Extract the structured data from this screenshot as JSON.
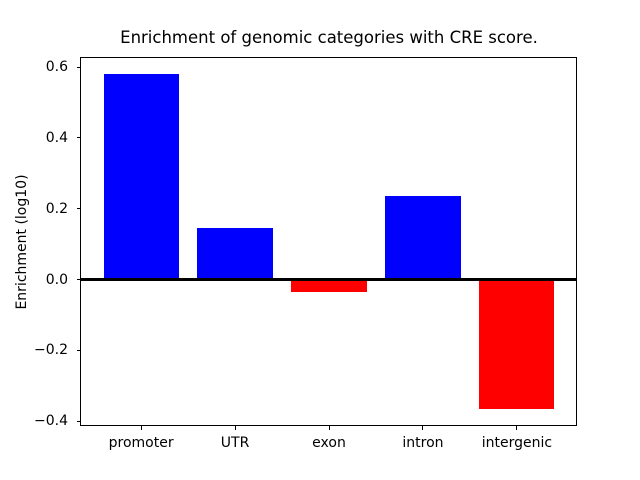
{
  "figure": {
    "background": "#ffffff"
  },
  "chart_data": {
    "type": "bar",
    "title": "Enrichment of genomic categories with CRE score.",
    "xlabel": "",
    "ylabel": "Enrichment (log10)",
    "categories": [
      "promoter",
      "UTR",
      "exon",
      "intron",
      "intergenic"
    ],
    "values": [
      0.58,
      0.145,
      -0.035,
      0.235,
      -0.365
    ],
    "bar_colors": [
      "#0000ff",
      "#0000ff",
      "#ff0000",
      "#0000ff",
      "#ff0000"
    ],
    "positive_color": "#0000ff",
    "negative_color": "#ff0000",
    "bar_width_fraction": 0.8,
    "ylim": [
      -0.414,
      0.626
    ],
    "xlim": [
      -0.64,
      4.64
    ],
    "ytick_values": [
      0.6,
      0.4,
      0.2,
      0.0,
      -0.2,
      -0.4
    ],
    "ytick_labels": [
      "0.6",
      "0.4",
      "0.2",
      "0.0",
      "−0.2",
      "−0.4"
    ],
    "zero_line": true,
    "grid": false,
    "legend": false
  }
}
